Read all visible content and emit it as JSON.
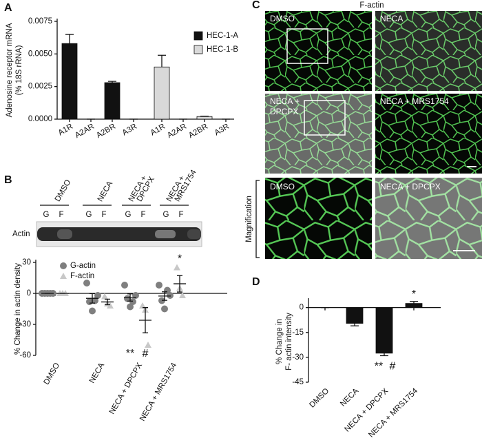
{
  "figure": {
    "panel_labels": [
      "A",
      "B",
      "C",
      "D"
    ]
  },
  "chart_data": [
    {
      "type": "bar",
      "ylabel": [
        "Adenosine receptor mRNA",
        "(% 18S rRNA)"
      ],
      "categories": [
        "A1R",
        "A2AR",
        "A2BR",
        "A3R",
        "A1R",
        "A2AR",
        "A2BR",
        "A3R"
      ],
      "series": [
        {
          "name": "HEC-1-A",
          "color": "#111111",
          "values": [
            0.0058,
            0,
            0.0028,
            0,
            null,
            null,
            null,
            null
          ],
          "errors": [
            0.0007,
            0,
            0.0001,
            0,
            null,
            null,
            null,
            null
          ]
        },
        {
          "name": "HEC-1-B",
          "color": "#d9d9d9",
          "values": [
            null,
            null,
            null,
            null,
            0.004,
            0,
            0.0002,
            0
          ],
          "errors": [
            null,
            null,
            null,
            null,
            0.0009,
            0,
            3e-05,
            0
          ]
        }
      ],
      "ylim": [
        0,
        0.0075
      ],
      "yticks": [
        {
          "value": 0,
          "label": "0.0000"
        },
        0.0025,
        {
          "value": 0.005,
          "label": "0.0050"
        },
        0.0075
      ],
      "legend": "upper right"
    },
    {
      "type": "dot",
      "ylabel": [
        "% Change in actin density"
      ],
      "categories": [
        "DMSO",
        "NECA",
        "NECA + DPCPX",
        "NECA + MRS1754"
      ],
      "series": [
        {
          "name": "G-actin",
          "color": "#7f7f7f",
          "marker": "circle",
          "values": [
            [
              0,
              0,
              0,
              0,
              0
            ],
            [
              10,
              -8,
              -17,
              -7,
              -2
            ],
            [
              8,
              -5,
              -13,
              -8,
              -2
            ],
            [
              8,
              -7,
              -15,
              3,
              -2
            ]
          ],
          "means": [
            0,
            -4.8,
            -4,
            -2.6
          ],
          "errors": [
            0,
            4.6,
            3.5,
            4.1
          ]
        },
        {
          "name": "F-actin",
          "color": "#c8c8c8",
          "marker": "triangle",
          "values": [
            [
              0,
              0,
              0
            ],
            [
              -3,
              -10,
              -12
            ],
            [
              -12,
              -16,
              -50
            ],
            [
              25,
              5,
              -2
            ]
          ],
          "means": [
            0,
            -8.3,
            -26,
            9.3
          ],
          "errors": [
            0,
            2.7,
            12.2,
            8
          ]
        }
      ],
      "ylim": [
        -60,
        30
      ],
      "yticks": [
        -60,
        -30,
        0,
        30
      ],
      "legend": "upper left",
      "annotations": [
        {
          "text": "**",
          "category": 2,
          "series": 0
        },
        {
          "text": "#",
          "category": 2,
          "series": 1
        },
        {
          "text": "*",
          "category": 3,
          "series": 1
        }
      ]
    },
    {
      "type": "bar",
      "ylabel": [
        "% Change in",
        "F- actin intensity"
      ],
      "categories": [
        "DMSO",
        "NECA",
        "NECA + DPCPX",
        "NECA + MRS1754"
      ],
      "series": [
        {
          "name": "F-actin",
          "color": "#111111",
          "values": [
            0,
            -9.5,
            -27.5,
            2.5
          ],
          "errors": [
            0,
            1.5,
            1.5,
            1.2
          ]
        }
      ],
      "ylim": [
        -45,
        4
      ],
      "yticks": [
        -45,
        -30,
        -15,
        0
      ],
      "annotations": [
        {
          "text": "**",
          "category": 2
        },
        {
          "text": "#",
          "category": 2
        },
        {
          "text": "*",
          "category": 3
        }
      ]
    }
  ],
  "blot": {
    "lanes": [
      "DMSO",
      "NECA",
      [
        "NECA +",
        "DPCPX"
      ],
      [
        "NECA +",
        "MRS1754"
      ]
    ],
    "sublanes": [
      "G",
      "F"
    ],
    "row_label": "Actin"
  },
  "micrographs": {
    "title": "F-actin",
    "panels": [
      "DMSO",
      "NECA",
      [
        "NECA +",
        "DPCPX"
      ],
      "NECA + MRS1754",
      "DMSO",
      "NECA + DPCPX"
    ],
    "side_label": "Magnification"
  }
}
